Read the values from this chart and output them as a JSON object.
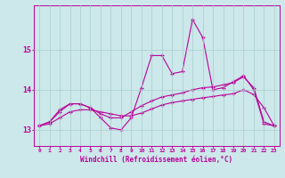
{
  "xlabel": "Windchill (Refroidissement éolien,°C)",
  "background_color": "#cce8ea",
  "grid_color": "#a8cccc",
  "line_color": "#bb0099",
  "xlim": [
    -0.5,
    23.5
  ],
  "ylim": [
    12.6,
    16.1
  ],
  "yticks": [
    13,
    14,
    15
  ],
  "xticks": [
    0,
    1,
    2,
    3,
    4,
    5,
    6,
    7,
    8,
    9,
    10,
    11,
    12,
    13,
    14,
    15,
    16,
    17,
    18,
    19,
    20,
    21,
    22,
    23
  ],
  "hours": [
    0,
    1,
    2,
    3,
    4,
    5,
    6,
    7,
    8,
    9,
    10,
    11,
    12,
    13,
    14,
    15,
    16,
    17,
    18,
    19,
    20,
    21,
    22,
    23
  ],
  "line1": [
    13.1,
    13.2,
    13.5,
    13.65,
    13.65,
    13.55,
    13.3,
    13.05,
    13.0,
    13.3,
    14.05,
    14.85,
    14.85,
    14.4,
    14.45,
    15.75,
    15.3,
    14.0,
    14.05,
    14.2,
    14.35,
    14.0,
    13.15,
    13.1
  ],
  "line2": [
    13.1,
    13.2,
    13.45,
    13.65,
    13.65,
    13.55,
    13.4,
    13.3,
    13.3,
    13.45,
    13.6,
    13.72,
    13.82,
    13.87,
    13.92,
    14.0,
    14.05,
    14.07,
    14.12,
    14.18,
    14.32,
    14.05,
    13.2,
    13.1
  ],
  "line3": [
    13.1,
    13.15,
    13.3,
    13.45,
    13.5,
    13.5,
    13.45,
    13.4,
    13.35,
    13.35,
    13.42,
    13.52,
    13.62,
    13.68,
    13.72,
    13.76,
    13.8,
    13.83,
    13.87,
    13.9,
    14.0,
    13.88,
    13.55,
    13.1
  ]
}
